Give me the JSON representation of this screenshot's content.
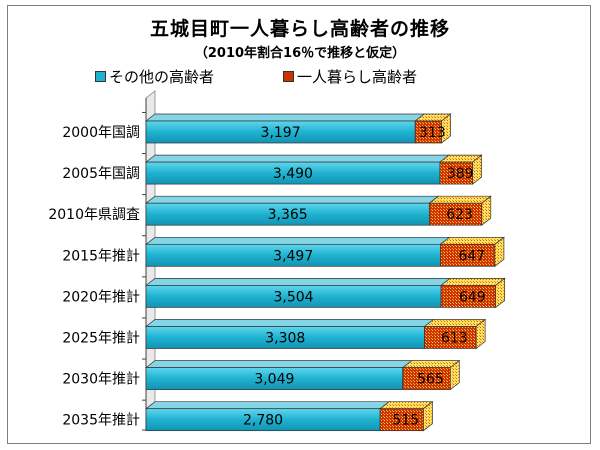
{
  "chart_data": {
    "type": "bar",
    "orientation": "horizontal",
    "stacked": true,
    "title": "五城目町一人暮らし高齢者の推移",
    "subtitle": "（2010年割合16％で推移と仮定）",
    "categories": [
      "2000年国調",
      "2005年国調",
      "2010年県調査",
      "2015年推計",
      "2020年推計",
      "2025年推計",
      "2030年推計",
      "2035年推計"
    ],
    "series": [
      {
        "name": "その他の高齢者",
        "values": [
          3197,
          3490,
          3365,
          3497,
          3504,
          3308,
          3049,
          2780
        ],
        "color": "#1fb2d0"
      },
      {
        "name": "一人暮らし高齢者",
        "values": [
          313,
          389,
          623,
          647,
          649,
          613,
          565,
          515
        ],
        "color": "#cc3300"
      }
    ],
    "xlim": [
      0,
      4000
    ],
    "legend_position": "top",
    "grid": false,
    "style": "3d"
  }
}
